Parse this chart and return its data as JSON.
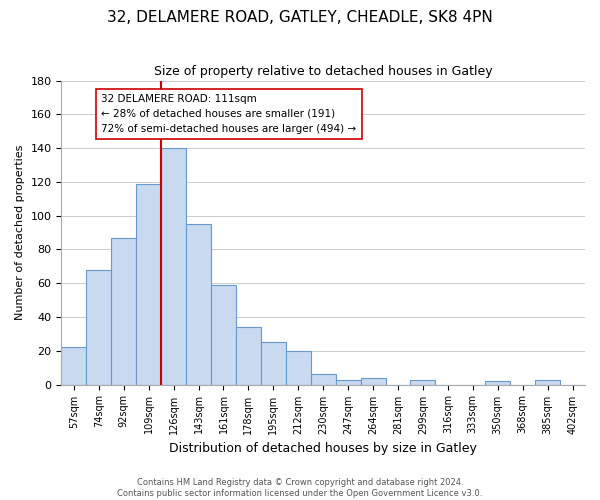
{
  "title": "32, DELAMERE ROAD, GATLEY, CHEADLE, SK8 4PN",
  "subtitle": "Size of property relative to detached houses in Gatley",
  "xlabel": "Distribution of detached houses by size in Gatley",
  "ylabel": "Number of detached properties",
  "bin_labels": [
    "57sqm",
    "74sqm",
    "92sqm",
    "109sqm",
    "126sqm",
    "143sqm",
    "161sqm",
    "178sqm",
    "195sqm",
    "212sqm",
    "230sqm",
    "247sqm",
    "264sqm",
    "281sqm",
    "299sqm",
    "316sqm",
    "333sqm",
    "350sqm",
    "368sqm",
    "385sqm",
    "402sqm"
  ],
  "bar_heights": [
    22,
    68,
    87,
    119,
    140,
    95,
    59,
    34,
    25,
    20,
    6,
    3,
    4,
    0,
    3,
    0,
    0,
    2,
    0,
    3,
    0
  ],
  "bar_color": "#c9d9f0",
  "bar_edge_color": "#6699cc",
  "vline_color": "#cc0000",
  "annotation_text": "32 DELAMERE ROAD: 111sqm\n← 28% of detached houses are smaller (191)\n72% of semi-detached houses are larger (494) →",
  "annotation_box_edge": "#cc0000",
  "ylim": [
    0,
    180
  ],
  "yticks": [
    0,
    20,
    40,
    60,
    80,
    100,
    120,
    140,
    160,
    180
  ],
  "footnote1": "Contains HM Land Registry data © Crown copyright and database right 2024.",
  "footnote2": "Contains public sector information licensed under the Open Government Licence v3.0.",
  "background_color": "#ffffff",
  "grid_color": "#cccccc"
}
